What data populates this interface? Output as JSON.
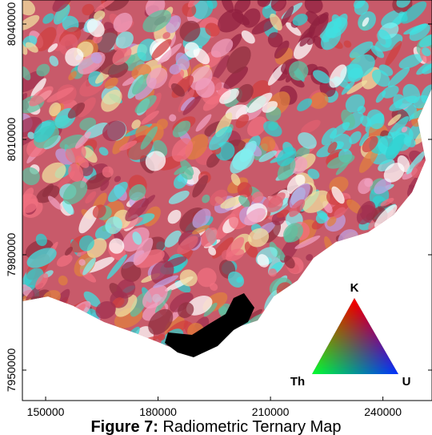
{
  "map": {
    "xticks": [
      150000,
      180000,
      210000,
      240000
    ],
    "yticks": [
      7950000,
      7980000,
      8010000,
      8040000
    ],
    "xlim": [
      143800,
      253100
    ],
    "ylim": [
      7942080,
      8046250
    ]
  },
  "legend": {
    "top": "K",
    "left": "Th",
    "right": "U"
  },
  "caption": {
    "label": "Figure 7:",
    "text": "Radiometric Ternary Map"
  }
}
